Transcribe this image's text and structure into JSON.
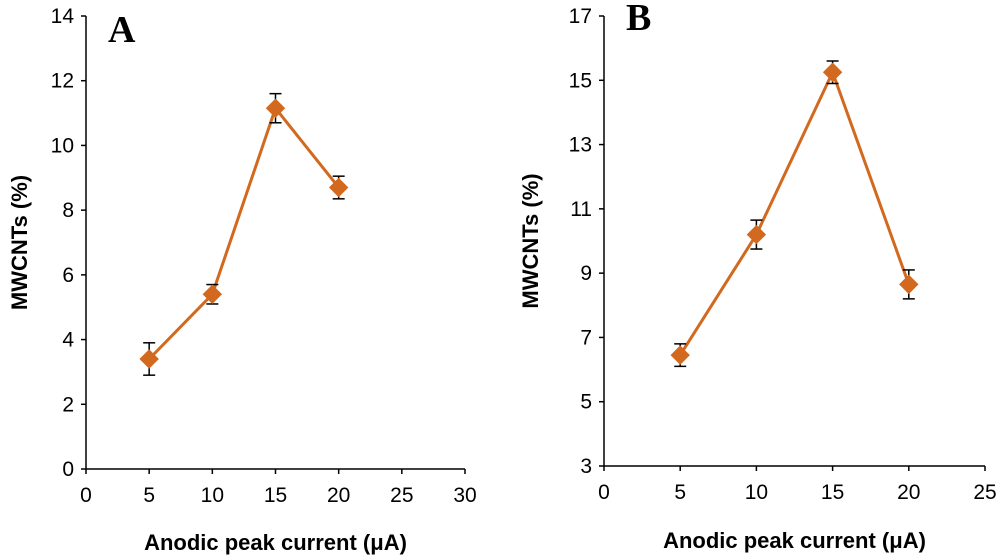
{
  "chart_data": [
    {
      "type": "line",
      "panel_label": "A",
      "xlabel": "Anodic peak current (μA)",
      "ylabel": "MWCNTs (%)",
      "xlim": [
        0,
        30
      ],
      "ylim": [
        0,
        14
      ],
      "xticks": [
        0,
        5,
        10,
        15,
        20,
        25,
        30
      ],
      "yticks": [
        0,
        2,
        4,
        6,
        8,
        10,
        12,
        14
      ],
      "grid": false,
      "marker": "diamond",
      "color": "#D2691E",
      "x": [
        5,
        10,
        15,
        20
      ],
      "series": [
        {
          "values": [
            3.4,
            5.4,
            11.15,
            8.7
          ],
          "errors": [
            0.5,
            0.3,
            0.45,
            0.35
          ]
        }
      ]
    },
    {
      "type": "line",
      "panel_label": "B",
      "xlabel": "Anodic peak current (μA)",
      "ylabel": "MWCNTs (%)",
      "xlim": [
        0,
        25
      ],
      "ylim": [
        3,
        17
      ],
      "xticks": [
        0,
        5,
        10,
        15,
        20,
        25
      ],
      "yticks": [
        3,
        5,
        7,
        9,
        11,
        13,
        15,
        17
      ],
      "grid": false,
      "marker": "diamond",
      "color": "#D2691E",
      "x": [
        5,
        10,
        15,
        20
      ],
      "series": [
        {
          "values": [
            6.45,
            10.2,
            15.25,
            8.65
          ],
          "errors": [
            0.35,
            0.45,
            0.35,
            0.45
          ]
        }
      ]
    }
  ]
}
